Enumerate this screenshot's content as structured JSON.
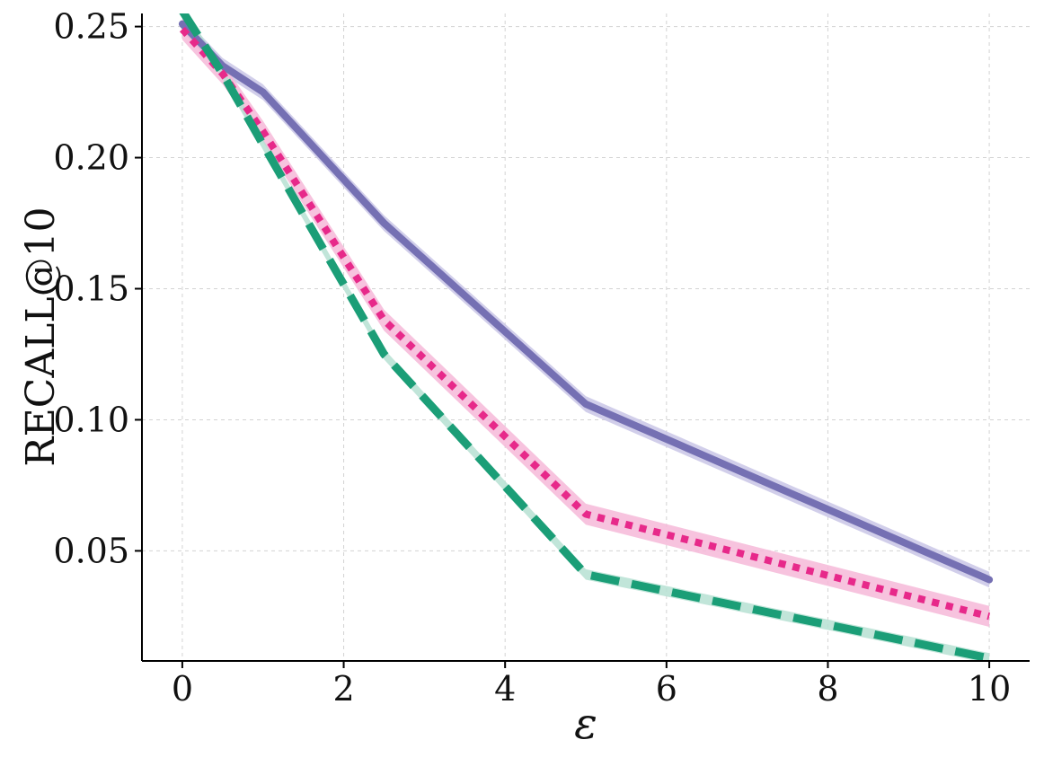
{
  "chart_data": {
    "type": "line",
    "xlabel": "ε",
    "ylabel": "RECALL@10",
    "xlim": [
      -0.5,
      10.5
    ],
    "ylim": [
      0.008,
      0.255
    ],
    "xticks": [
      0,
      2,
      4,
      6,
      8,
      10
    ],
    "yticks": [
      0.05,
      0.1,
      0.15,
      0.2,
      0.25
    ],
    "xtick_labels": [
      "0",
      "2",
      "4",
      "6",
      "8",
      "10"
    ],
    "ytick_labels": [
      "0.05",
      "0.10",
      "0.15",
      "0.20",
      "0.25"
    ],
    "grid": true,
    "legend": "none",
    "series": [
      {
        "color": "#7570b3",
        "band_color": "#c9c6e6",
        "style": "solid",
        "x": [
          0,
          0.5,
          1,
          2.5,
          5,
          10
        ],
        "y": [
          0.251,
          0.235,
          0.225,
          0.175,
          0.106,
          0.039
        ],
        "band": 0.003
      },
      {
        "color": "#e7298a",
        "band_color": "#f6b8d8",
        "style": "dotted",
        "x": [
          0,
          0.5,
          1,
          2.5,
          5,
          10
        ],
        "y": [
          0.249,
          0.232,
          0.21,
          0.138,
          0.064,
          0.025
        ],
        "band": 0.004
      },
      {
        "color": "#1b9e77",
        "band_color": "#b6e0d2",
        "style": "dashed",
        "x": [
          0,
          0.5,
          1,
          2.5,
          5,
          10
        ],
        "y": [
          0.256,
          0.232,
          0.205,
          0.125,
          0.041,
          0.009
        ],
        "band": 0.002
      }
    ]
  }
}
